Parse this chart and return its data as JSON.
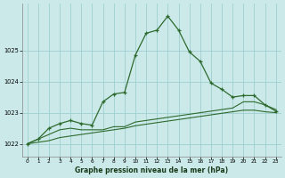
{
  "title": "Graphe pression niveau de la mer (hPa)",
  "bg_color": "#cbe9e9",
  "grid_color": "#9ecece",
  "line_color": "#2d6a2d",
  "xlim": [
    -0.5,
    23.5
  ],
  "ylim": [
    1021.6,
    1026.5
  ],
  "yticks": [
    1022,
    1023,
    1024,
    1025
  ],
  "xticks": [
    0,
    1,
    2,
    3,
    4,
    5,
    6,
    7,
    8,
    9,
    10,
    11,
    12,
    13,
    14,
    15,
    16,
    17,
    18,
    19,
    20,
    21,
    22,
    23
  ],
  "series1_x": [
    0,
    1,
    2,
    3,
    4,
    5,
    6,
    7,
    8,
    9,
    10,
    11,
    12,
    13,
    14,
    15,
    16,
    17,
    18,
    19,
    20,
    21,
    22,
    23
  ],
  "series1_y": [
    1022.0,
    1022.15,
    1022.5,
    1022.65,
    1022.75,
    1022.65,
    1022.6,
    1023.35,
    1023.6,
    1023.65,
    1024.85,
    1025.55,
    1025.65,
    1026.1,
    1025.65,
    1024.95,
    1024.65,
    1023.95,
    1023.75,
    1023.5,
    1023.55,
    1023.55,
    1023.25,
    1023.05
  ],
  "series2_x": [
    0,
    3,
    4,
    5,
    6,
    7,
    8,
    9,
    10,
    11,
    12,
    13,
    14,
    15,
    16,
    17,
    18,
    19,
    20,
    21,
    22,
    23
  ],
  "series2_y": [
    1022.0,
    1022.45,
    1022.5,
    1022.45,
    1022.45,
    1022.45,
    1022.55,
    1022.55,
    1022.7,
    1022.75,
    1022.8,
    1022.85,
    1022.9,
    1022.95,
    1023.0,
    1023.05,
    1023.1,
    1023.15,
    1023.35,
    1023.35,
    1023.25,
    1023.1
  ],
  "series3_x": [
    0,
    1,
    2,
    3,
    4,
    5,
    6,
    7,
    8,
    9,
    10,
    11,
    12,
    13,
    14,
    15,
    16,
    17,
    18,
    19,
    20,
    21,
    22,
    23
  ],
  "series3_y": [
    1022.0,
    1022.05,
    1022.1,
    1022.2,
    1022.25,
    1022.3,
    1022.35,
    1022.4,
    1022.45,
    1022.5,
    1022.58,
    1022.63,
    1022.68,
    1022.73,
    1022.78,
    1022.83,
    1022.88,
    1022.93,
    1022.98,
    1023.03,
    1023.08,
    1023.08,
    1023.03,
    1023.0
  ]
}
